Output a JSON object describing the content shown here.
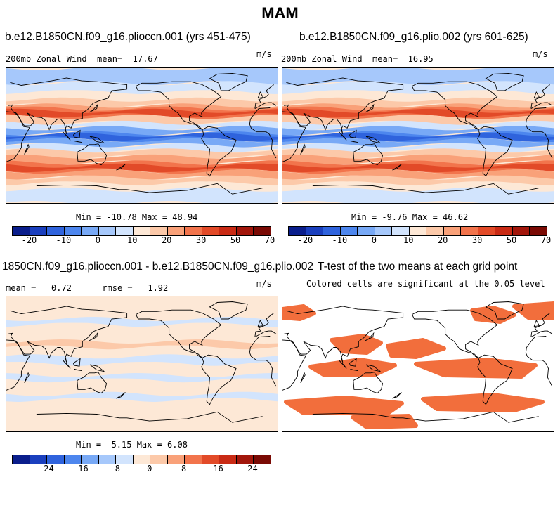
{
  "figure": {
    "title": "MAM",
    "units": "m/s"
  },
  "chart_data": [
    {
      "type": "heatmap",
      "title": "b.e12.B1850CN.f09_g16.plioccn.001 (yrs 451-475)",
      "left_label": "200mb Zonal Wind",
      "mean_label": "mean=",
      "mean": "17.67",
      "units": "m/s",
      "min_max": "Min = -10.78 Max = 48.94",
      "min": -10.78,
      "max": 48.94,
      "colorbar_ticks": [
        "-20",
        "-10",
        "0",
        "10",
        "20",
        "30",
        "50",
        "70"
      ],
      "colorbar_colors": [
        "#0a1e8c",
        "#1a3fbe",
        "#2f63dd",
        "#4d86ee",
        "#78a9f6",
        "#a6c8fb",
        "#d2e4fd",
        "#fde8d6",
        "#fcc9a9",
        "#f9a179",
        "#f2744c",
        "#e24a28",
        "#c92a14",
        "#a2160b",
        "#7a0a04"
      ]
    },
    {
      "type": "heatmap",
      "title": "b.e12.B1850CN.f09_g16.plio.002 (yrs 601-625)",
      "left_label": "200mb Zonal Wind",
      "mean_label": "mean=",
      "mean": "16.95",
      "units": "m/s",
      "min_max": "Min = -9.76 Max = 46.62",
      "min": -9.76,
      "max": 46.62,
      "colorbar_ticks": [
        "-20",
        "-10",
        "0",
        "10",
        "20",
        "30",
        "50",
        "70"
      ],
      "colorbar_colors": [
        "#0a1e8c",
        "#1a3fbe",
        "#2f63dd",
        "#4d86ee",
        "#78a9f6",
        "#a6c8fb",
        "#d2e4fd",
        "#fde8d6",
        "#fcc9a9",
        "#f9a179",
        "#f2744c",
        "#e24a28",
        "#c92a14",
        "#a2160b",
        "#7a0a04"
      ]
    },
    {
      "type": "heatmap",
      "title": "1850CN.f09_g16.plioccn.001 - b.e12.B1850CN.f09_g16.plio.002",
      "left_label": "mean =",
      "mean": "0.72",
      "rmse_label": "rmse =",
      "rmse": "1.92",
      "units": "m/s",
      "min_max": "Min = -5.15 Max = 6.08",
      "min": -5.15,
      "max": 6.08,
      "colorbar_ticks": [
        "-24",
        "-16",
        "-8",
        "0",
        "8",
        "16",
        "24"
      ],
      "colorbar_colors": [
        "#0a1e8c",
        "#1a3fbe",
        "#2f63dd",
        "#4d86ee",
        "#78a9f6",
        "#a6c8fb",
        "#d2e4fd",
        "#fde8d6",
        "#fcc9a9",
        "#f9a179",
        "#f2744c",
        "#e24a28",
        "#c92a14",
        "#a2160b",
        "#7a0a04"
      ]
    },
    {
      "type": "heatmap",
      "title": "T-test of the two means at each grid point",
      "subtitle": "Colored cells are significant at the 0.05 level",
      "significant_color": "#f26e3c"
    }
  ]
}
